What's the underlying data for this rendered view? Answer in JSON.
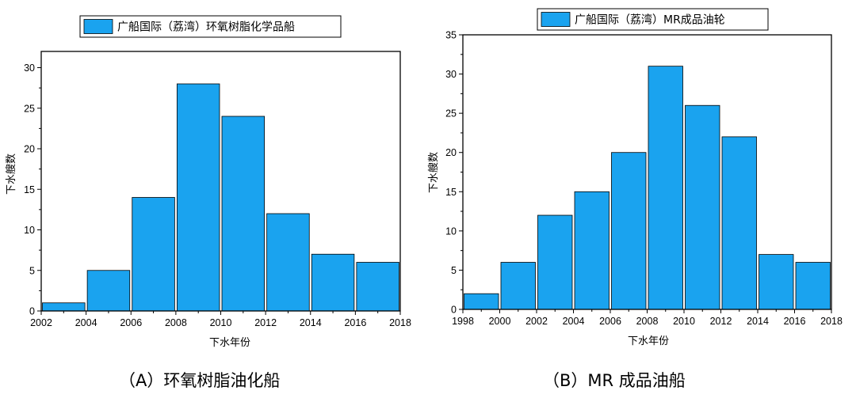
{
  "colors": {
    "bar_fill": "#1aa3ef",
    "bar_stroke": "#000000",
    "axis": "#000000"
  },
  "captions": {
    "a": "（A）环氧树脂油化船",
    "b": "（B）MR 成品油船"
  },
  "chart_data": [
    {
      "type": "bar",
      "legend": "广船国际（荔湾）环氧树脂化学品船",
      "legend_position": "top-center",
      "xlabel": "下水年份",
      "ylabel": "下水艘数",
      "grid": false,
      "xlim": [
        2002,
        2018
      ],
      "ylim": [
        0,
        32
      ],
      "xticks": [
        2002,
        2004,
        2006,
        2008,
        2010,
        2012,
        2014,
        2016,
        2018
      ],
      "yticks": [
        0,
        5,
        10,
        15,
        20,
        25,
        30
      ],
      "bins": [
        [
          2002,
          2004
        ],
        [
          2004,
          2006
        ],
        [
          2006,
          2008
        ],
        [
          2008,
          2010
        ],
        [
          2010,
          2012
        ],
        [
          2012,
          2014
        ],
        [
          2014,
          2016
        ],
        [
          2016,
          2018
        ]
      ],
      "values": [
        1,
        5,
        14,
        28,
        24,
        12,
        7,
        6
      ]
    },
    {
      "type": "bar",
      "legend": "广船国际（荔湾）MR成品油轮",
      "legend_position": "top-center",
      "xlabel": "下水年份",
      "ylabel": "下水艘数",
      "grid": false,
      "xlim": [
        1998,
        2018
      ],
      "ylim": [
        0,
        35
      ],
      "xticks": [
        1998,
        2000,
        2002,
        2004,
        2006,
        2008,
        2010,
        2012,
        2014,
        2016,
        2018
      ],
      "yticks": [
        0,
        5,
        10,
        15,
        20,
        25,
        30,
        35
      ],
      "bins": [
        [
          1998,
          2000
        ],
        [
          2000,
          2002
        ],
        [
          2002,
          2004
        ],
        [
          2004,
          2006
        ],
        [
          2006,
          2008
        ],
        [
          2008,
          2010
        ],
        [
          2010,
          2012
        ],
        [
          2012,
          2014
        ],
        [
          2014,
          2016
        ],
        [
          2016,
          2018
        ]
      ],
      "values": [
        2,
        6,
        12,
        15,
        20,
        31,
        26,
        22,
        7,
        6
      ]
    }
  ]
}
